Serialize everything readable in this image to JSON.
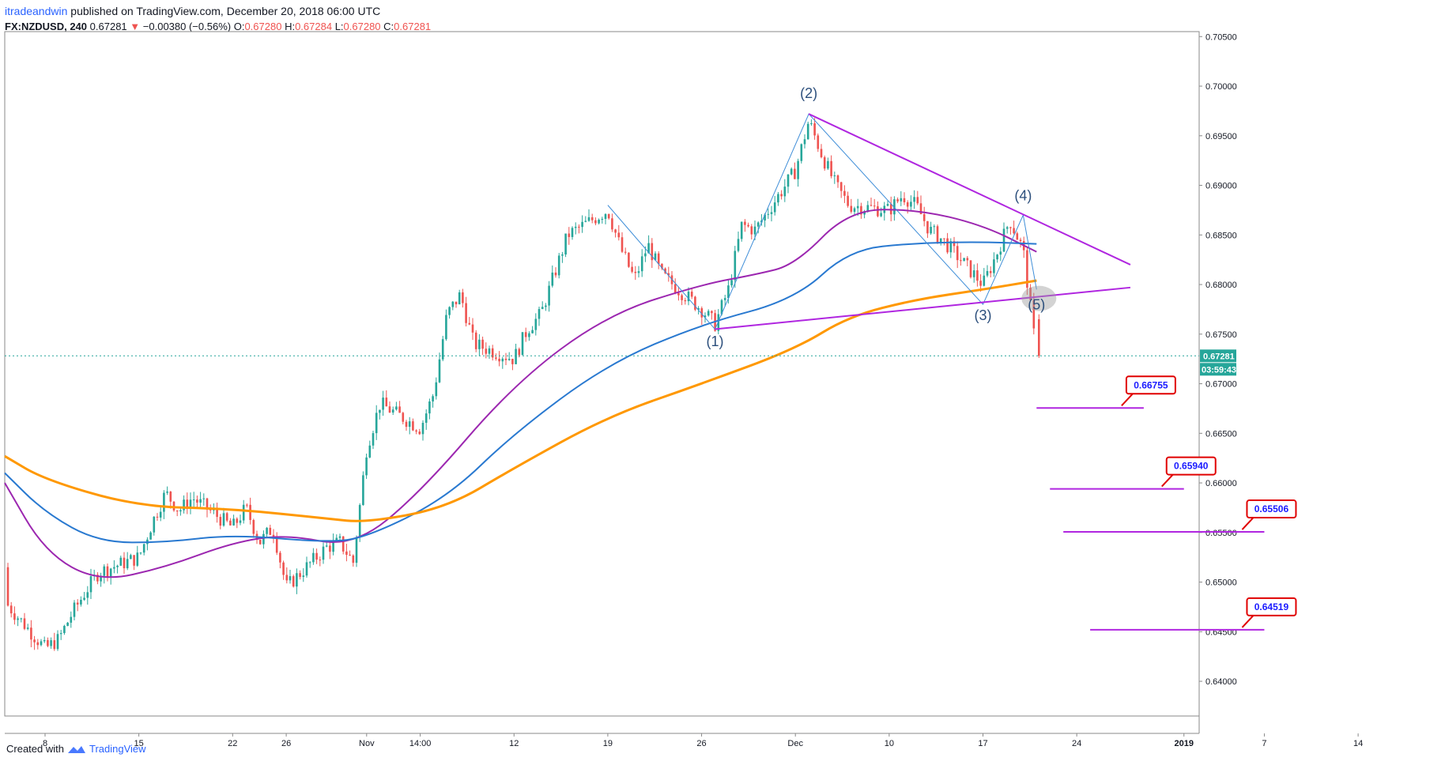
{
  "header": {
    "author": "itradeandwin",
    "published_text": "published on TradingView.com, December 20, 2018 06:00 UTC",
    "symbol": "FX:NZDUSD, 240",
    "last": "0.67281",
    "arrow": "▼",
    "change": "−0.00380 (−0.56%)",
    "o_label": "O:",
    "o_value": "0.67280",
    "h_label": "H:",
    "h_value": "0.67284",
    "l_label": "L:",
    "l_value": "0.67280",
    "c_label": "C:",
    "c_value": "0.67281"
  },
  "footer": {
    "created_with": "Created with",
    "brand": "TradingView"
  },
  "colors": {
    "up": "#26a69a",
    "down": "#ef5350",
    "ma_purple": "#9c27b0",
    "ma_blue": "#2979d0",
    "ma_orange": "#ff9800",
    "trendline": "#b026e0",
    "wave": "#3f8ed8",
    "target_box_border": "#e00000",
    "target_text": "#1a1aff",
    "price_tag": "#26a69a"
  },
  "chart_data": {
    "type": "candlestick",
    "title": "",
    "ylim": [
      0.6365,
      0.7055
    ],
    "y_ticks": [
      "0.70500",
      "0.70000",
      "0.69500",
      "0.69000",
      "0.68500",
      "0.68000",
      "0.67500",
      "0.67000",
      "0.66500",
      "0.66000",
      "0.65500",
      "0.65000",
      "0.64500",
      "0.64000"
    ],
    "x_ticks": [
      "8",
      "15",
      "22",
      "26",
      "Nov",
      "14:00",
      "12",
      "19",
      "26",
      "Dec",
      "10",
      "17",
      "24",
      "2019",
      "7",
      "14"
    ],
    "bold_ticks": [
      "2019"
    ],
    "current_price": "0.67281",
    "countdown": "03:59:43",
    "price_path": [
      [
        "2018-10-04",
        0.6512
      ],
      [
        "2018-10-05",
        0.648
      ],
      [
        "2018-10-08",
        0.6433
      ],
      [
        "2018-10-09",
        0.6442
      ],
      [
        "2018-10-10",
        0.6468
      ],
      [
        "2018-10-11",
        0.649
      ],
      [
        "2018-10-12",
        0.651
      ],
      [
        "2018-10-15",
        0.6525
      ],
      [
        "2018-10-16",
        0.656
      ],
      [
        "2018-10-17",
        0.659
      ],
      [
        "2018-10-18",
        0.6572
      ],
      [
        "2018-10-19",
        0.6585
      ],
      [
        "2018-10-22",
        0.6555
      ],
      [
        "2018-10-23",
        0.6575
      ],
      [
        "2018-10-24",
        0.654
      ],
      [
        "2018-10-25",
        0.6555
      ],
      [
        "2018-10-26",
        0.6495
      ],
      [
        "2018-10-29",
        0.6535
      ],
      [
        "2018-10-30",
        0.654
      ],
      [
        "2018-10-31",
        0.652
      ],
      [
        "2018-11-01",
        0.6635
      ],
      [
        "2018-11-02",
        0.668
      ],
      [
        "2018-11-05",
        0.6655
      ],
      [
        "2018-11-06",
        0.669
      ],
      [
        "2018-11-07",
        0.677
      ],
      [
        "2018-11-08",
        0.679
      ],
      [
        "2018-11-09",
        0.674
      ],
      [
        "2018-11-12",
        0.6725
      ],
      [
        "2018-11-13",
        0.6755
      ],
      [
        "2018-11-14",
        0.677
      ],
      [
        "2018-11-15",
        0.681
      ],
      [
        "2018-11-16",
        0.685
      ],
      [
        "2018-11-19",
        0.6875
      ],
      [
        "2018-11-20",
        0.6835
      ],
      [
        "2018-11-21",
        0.6805
      ],
      [
        "2018-11-22",
        0.684
      ],
      [
        "2018-11-23",
        0.681
      ],
      [
        "2018-11-26",
        0.6775
      ],
      [
        "2018-11-27",
        0.676
      ],
      [
        "2018-11-28",
        0.6795
      ],
      [
        "2018-11-29",
        0.686
      ],
      [
        "2018-11-30",
        0.6855
      ],
      [
        "2018-12-03",
        0.6915
      ],
      [
        "2018-12-04",
        0.6965
      ],
      [
        "2018-12-05",
        0.693
      ],
      [
        "2018-12-06",
        0.69
      ],
      [
        "2018-12-07",
        0.688
      ],
      [
        "2018-12-10",
        0.6875
      ],
      [
        "2018-12-11",
        0.689
      ],
      [
        "2018-12-12",
        0.688
      ],
      [
        "2018-12-13",
        0.6855
      ],
      [
        "2018-12-14",
        0.6845
      ],
      [
        "2018-12-17",
        0.68
      ],
      [
        "2018-12-18",
        0.683
      ],
      [
        "2018-12-19",
        0.6865
      ],
      [
        "2018-12-20",
        0.6835
      ],
      [
        "2018-12-21",
        0.6728
      ]
    ],
    "moving_averages": [
      {
        "color": "purple",
        "points": [
          [
            "2018-10-01",
            0.66
          ],
          [
            "2018-10-08",
            0.653
          ],
          [
            "2018-10-12",
            0.65
          ],
          [
            "2018-10-17",
            0.6515
          ],
          [
            "2018-10-22",
            0.654
          ],
          [
            "2018-10-26",
            0.6548
          ],
          [
            "2018-10-31",
            0.6535
          ],
          [
            "2018-11-05",
            0.659
          ],
          [
            "2018-11-12",
            0.67
          ],
          [
            "2018-11-19",
            0.677
          ],
          [
            "2018-11-26",
            0.68
          ],
          [
            "2018-11-30",
            0.681
          ],
          [
            "2018-12-03",
            0.682
          ],
          [
            "2018-12-07",
            0.6875
          ],
          [
            "2018-12-12",
            0.6876
          ],
          [
            "2018-12-17",
            0.686
          ],
          [
            "2018-12-21",
            0.6833
          ]
        ]
      },
      {
        "color": "blue",
        "points": [
          [
            "2018-10-01",
            0.661
          ],
          [
            "2018-10-08",
            0.657
          ],
          [
            "2018-10-12",
            0.654
          ],
          [
            "2018-10-17",
            0.654
          ],
          [
            "2018-10-22",
            0.6548
          ],
          [
            "2018-10-29",
            0.654
          ],
          [
            "2018-11-01",
            0.6545
          ],
          [
            "2018-11-07",
            0.6585
          ],
          [
            "2018-11-12",
            0.665
          ],
          [
            "2018-11-19",
            0.672
          ],
          [
            "2018-11-26",
            0.676
          ],
          [
            "2018-12-03",
            0.6785
          ],
          [
            "2018-12-07",
            0.6835
          ],
          [
            "2018-12-12",
            0.6842
          ],
          [
            "2018-12-17",
            0.6843
          ],
          [
            "2018-12-21",
            0.6841
          ]
        ]
      },
      {
        "color": "orange",
        "points": [
          [
            "2018-10-01",
            0.6627
          ],
          [
            "2018-10-08",
            0.6603
          ],
          [
            "2018-10-15",
            0.6576
          ],
          [
            "2018-10-22",
            0.6574
          ],
          [
            "2018-10-29",
            0.6564
          ],
          [
            "2018-11-01",
            0.656
          ],
          [
            "2018-11-07",
            0.6575
          ],
          [
            "2018-11-12",
            0.6615
          ],
          [
            "2018-11-19",
            0.6667
          ],
          [
            "2018-11-26",
            0.67
          ],
          [
            "2018-12-03",
            0.6735
          ],
          [
            "2018-12-07",
            0.6768
          ],
          [
            "2018-12-12",
            0.6785
          ],
          [
            "2018-12-17",
            0.6795
          ],
          [
            "2018-12-21",
            0.6804
          ]
        ]
      }
    ],
    "trendlines": [
      {
        "kind": "resistance",
        "from": [
          "2018-12-04",
          0.6972
        ],
        "to": [
          "2018-12-28",
          0.682
        ]
      },
      {
        "kind": "support",
        "from": [
          "2018-11-27",
          0.6755
        ],
        "to": [
          "2018-12-28",
          0.6797
        ]
      }
    ],
    "wave_path": [
      [
        "2018-11-19",
        0.688
      ],
      [
        "2018-11-27",
        0.6755
      ],
      [
        "2018-12-04",
        0.6972
      ],
      [
        "2018-12-17",
        0.678
      ],
      [
        "2018-12-20",
        0.687
      ],
      [
        "2018-12-21",
        0.6795
      ]
    ],
    "wave_labels": [
      {
        "text": "(1)",
        "x": "2018-11-27",
        "y": 0.6738
      },
      {
        "text": "(2)",
        "x": "2018-12-04",
        "y": 0.6988
      },
      {
        "text": "(3)",
        "x": "2018-12-17",
        "y": 0.6764
      },
      {
        "text": "(4)",
        "x": "2018-12-20",
        "y": 0.6885
      },
      {
        "text": "(5)",
        "x": "2018-12-21",
        "y": 0.6775
      }
    ],
    "targets": [
      {
        "label": "0.66755",
        "value": 0.66755,
        "line_from": "2018-12-21",
        "line_to": "2018-12-29"
      },
      {
        "label": "0.65940",
        "value": 0.6594,
        "line_from": "2018-12-22",
        "line_to": "2019-01-01"
      },
      {
        "label": "0.65506",
        "value": 0.65506,
        "line_from": "2018-12-23",
        "line_to": "2019-01-07"
      },
      {
        "label": "0.64519",
        "value": 0.64519,
        "line_from": "2018-12-25",
        "line_to": "2019-01-07"
      }
    ]
  }
}
